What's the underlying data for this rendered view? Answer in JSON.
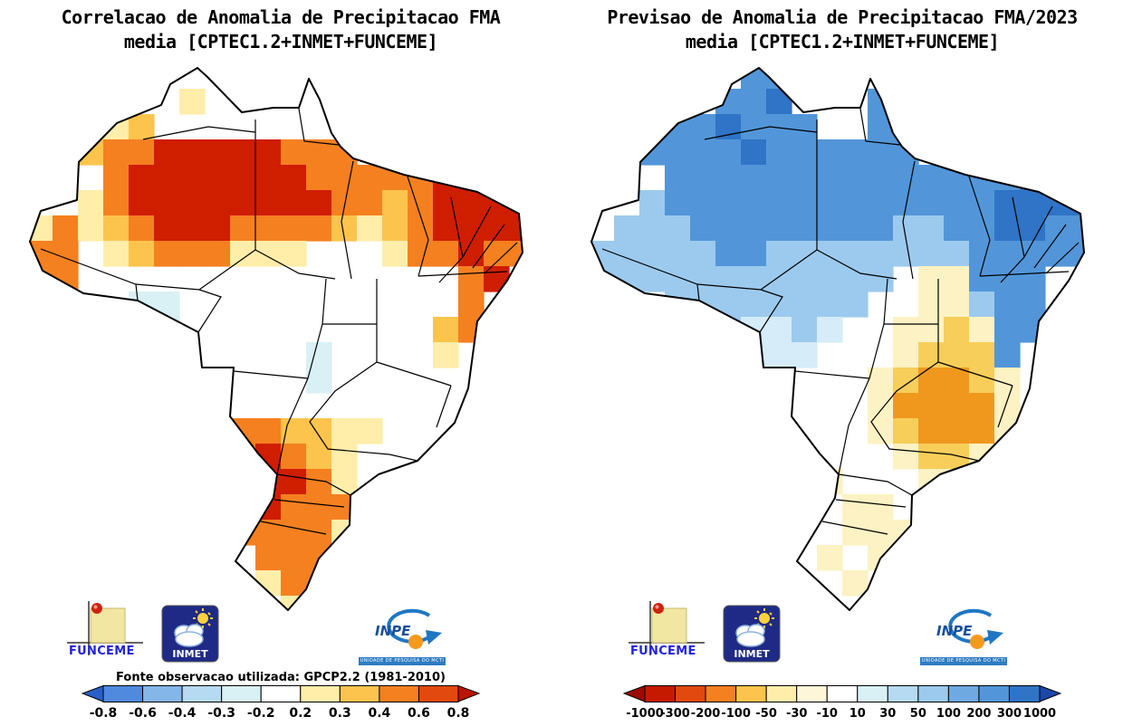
{
  "panels": [
    {
      "id": "correlation",
      "title_line1": "Correlacao de Anomalia de Precipitacao FMA",
      "title_line2": "media [CPTEC1.2+INMET+FUNCEME]",
      "source_note": "Fonte observacao utilizada: GPCP2.2 (1981-2010)",
      "colorbar": {
        "labels": [
          "-0.8",
          "-0.6",
          "-0.4",
          "-0.3",
          "-0.2",
          "0.2",
          "0.3",
          "0.4",
          "0.6",
          "0.8"
        ],
        "colors": [
          "#2a5fc8",
          "#4f8ade",
          "#85b6ea",
          "#b5daf2",
          "#d9f1f5",
          "#ffffff",
          "#ffedaa",
          "#fcc44d",
          "#f58020",
          "#e1490e",
          "#bb1400"
        ]
      },
      "grid": {
        "palette": {
          "w": "#ffffff",
          "y": "#ffedaa",
          "g": "#fcc44d",
          "o": "#f58020",
          "r": "#cf1d00",
          "c": "#d9f1f5"
        },
        "rows": [
          "wwwwwwwwwwwwwwwwwwww",
          "wwwwwwywwwwwwwwwwwww",
          "wyyygwwwwwwwwwwwwwww",
          "wwgoorrrrrooowwwwwww",
          "wwworrrrrrrooooorrrw",
          "wwyorrrrrrrroogorrrr",
          "yoygorrroooogygorrrr",
          "oowygoooyyywwwyooroo",
          "oowwwwwwwwwwwwwwworw",
          "wwwwccwwwwwwwwwwwoww",
          "wwwwwcwwwwwwwwwwgoww",
          "wwwwwwwwwwwcwwwwywww",
          "wwwwwwwwwwwcwwwwwwww",
          "wwwwwwwwwwwwwwwwwwww",
          "wwwwwwwyooggyywwwwww",
          "wwwwwwwworogywwwwwww",
          "wwwwwwwworroywwwwwww",
          "wwwwwwwworooowwwwwww",
          "wwwwwwwwooooywwwwwww",
          "wwwwwwwwwooowwwwwwww",
          "wwwwwwwwwyoowwwwwwww",
          "wwwwwwwwwwyywwwwwwww"
        ]
      }
    },
    {
      "id": "forecast",
      "title_line1": "Previsao de Anomalia de Precipitacao FMA/2023",
      "title_line2": "media [CPTEC1.2+INMET+FUNCEME]",
      "source_note": "",
      "colorbar": {
        "labels": [
          "-1000",
          "-300",
          "-200",
          "-100",
          "-50",
          "-30",
          "-10",
          "10",
          "30",
          "50",
          "100",
          "200",
          "300",
          "1000"
        ],
        "colors": [
          "#9b0b00",
          "#c51a00",
          "#e1490e",
          "#f58020",
          "#fcc44d",
          "#ffedaa",
          "#fdf6d8",
          "#ffffff",
          "#d9f1f5",
          "#b5daf2",
          "#9ccaee",
          "#6ea9e2",
          "#5296d9",
          "#2f74c6",
          "#1c46a8"
        ]
      },
      "grid": {
        "palette": {
          "w": "#ffffff",
          "y": "#fdf2c3",
          "g": "#f8ce5a",
          "o": "#f0981e",
          "l": "#9ccaee",
          "L": "#d6ecf8",
          "b": "#5296d9",
          "B": "#2f74c6"
        },
        "rows": [
          "wwwwwwbbwwwwwwwwwwww",
          "wwwwwbbBwwwbwwwwwwww",
          "wlbbbBbbbwwbbwwwwwww",
          "wwbbbbBbbbbbbwwwwwww",
          "wwwbbbbbbbbbbbbbbBBw",
          "wwlbbbbbbbbbbbbbBBBB",
          "wlllbbbbbbbbllbbBBbb",
          "lllllbbllllllllbbbbb",
          "llllllllllllwyybbbww",
          "wwwllllllllwwyylbbww",
          "wwwwllLLlLwwyygybbww",
          "wwwwwLLLLwwwygggbwww",
          "wwwwwwLwwwwygoogywww",
          "wwwwwwwwwwwyooooywww",
          "wwwwwwwwwwwygoooywww",
          "wwwwwwwwwwwwyggywwww",
          "wwwwwwwwwywwwyywwwww",
          "wwwwwwwwwwyywwwwwwww",
          "wwwwwwwwwwyyywwwwwww",
          "wwwwwwwwwywywwwwwwww",
          "wwwwwwwwwwywwwwwwwww",
          "wwwwwwwwwwwwwwwwwwww"
        ]
      }
    }
  ],
  "logos": {
    "funceme": {
      "label": "FUNCEME"
    },
    "inmet": {
      "label": "INMET"
    },
    "inpe": {
      "label": "INPE",
      "subtext": "UNIDADE DE PESQUISA DO MCTI"
    }
  },
  "chart_data": [
    {
      "type": "heatmap",
      "title": "Correlacao de Anomalia de Precipitacao FMA media [CPTEC1.2+INMET+FUNCEME]",
      "region": "Brazil",
      "legend_position": "bottom",
      "scale_ticks": [
        -0.8,
        -0.6,
        -0.4,
        -0.3,
        -0.2,
        0.2,
        0.3,
        0.4,
        0.6,
        0.8
      ],
      "source_note": "Fonte observacao utilizada: GPCP2.2 (1981-2010)",
      "summary": "High positive correlation (0.4 to >0.8, orange to dark red) across northern Amazonia and the Northeast; positive (0.3-0.8) over southern Brazil (PR/SC/RS); near-zero (white) over central Brazil; small weak-negative patches (-0.2 to -0.3, light cyan) over Rondonia and the central-west."
    },
    {
      "type": "heatmap",
      "title": "Previsao de Anomalia de Precipitacao FMA/2023 media [CPTEC1.2+INMET+FUNCEME]",
      "region": "Brazil",
      "legend_position": "bottom",
      "scale_ticks": [
        -1000,
        -300,
        -200,
        -100,
        -50,
        -30,
        -10,
        10,
        30,
        50,
        100,
        200,
        300,
        1000
      ],
      "summary": "Positive precipitation anomalies (blue, +30 to +300) forecast over most of northern and northeastern Brazil; negative anomalies (orange, -50 to -200) centered on Minas Gerais and the interior Southeast with a pale-yellow fringe; weak/neutral anomalies over the South."
    }
  ]
}
